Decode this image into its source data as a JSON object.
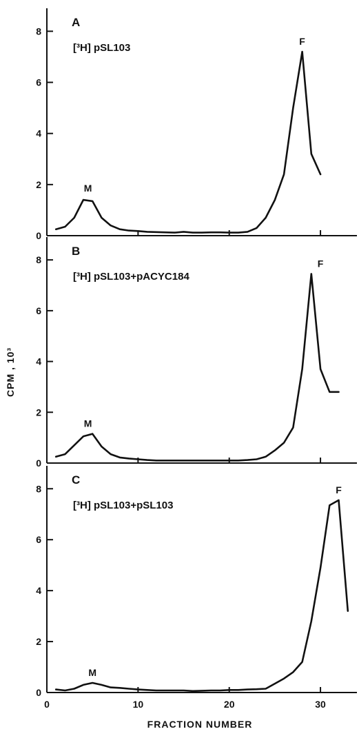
{
  "chart_data": {
    "type": "line",
    "figure_xlabel": "FRACTION NUMBER",
    "figure_ylabel": "CPM , 10³",
    "x_ticks": [
      0,
      10,
      20,
      30
    ],
    "y_ticks": [
      0,
      2,
      4,
      6,
      8
    ],
    "xlim": [
      0,
      34
    ],
    "ylim": [
      0,
      8.9
    ],
    "panels": [
      {
        "letter": "A",
        "label": "[³H] pSL103",
        "peaks": [
          {
            "text": "M",
            "x": 4.5,
            "y": 1.45
          },
          {
            "text": "F",
            "x": 28,
            "y": 7.2
          }
        ],
        "x": [
          1,
          2,
          3,
          4,
          5,
          6,
          7,
          8,
          9,
          10,
          11,
          12,
          13,
          14,
          15,
          16,
          17,
          18,
          19,
          20,
          21,
          22,
          23,
          24,
          25,
          26,
          27,
          28,
          29,
          30
        ],
        "y": [
          0.25,
          0.35,
          0.7,
          1.4,
          1.35,
          0.7,
          0.4,
          0.25,
          0.2,
          0.18,
          0.15,
          0.14,
          0.13,
          0.12,
          0.15,
          0.12,
          0.12,
          0.13,
          0.13,
          0.12,
          0.12,
          0.15,
          0.3,
          0.7,
          1.4,
          2.4,
          5.0,
          7.2,
          3.2,
          2.4
        ]
      },
      {
        "letter": "B",
        "label": "[³H] pSL103+pACYC184",
        "peaks": [
          {
            "text": "M",
            "x": 4.5,
            "y": 1.15
          },
          {
            "text": "F",
            "x": 30,
            "y": 7.45
          }
        ],
        "x": [
          1,
          2,
          3,
          4,
          5,
          6,
          7,
          8,
          9,
          10,
          11,
          12,
          13,
          14,
          15,
          16,
          17,
          18,
          19,
          20,
          21,
          22,
          23,
          24,
          25,
          26,
          27,
          28,
          29,
          30,
          31,
          32
        ],
        "y": [
          0.25,
          0.35,
          0.7,
          1.05,
          1.15,
          0.65,
          0.35,
          0.22,
          0.18,
          0.15,
          0.12,
          0.1,
          0.1,
          0.1,
          0.1,
          0.1,
          0.1,
          0.1,
          0.1,
          0.1,
          0.1,
          0.12,
          0.15,
          0.25,
          0.5,
          0.8,
          1.4,
          3.7,
          7.45,
          3.7,
          2.8,
          2.8
        ]
      },
      {
        "letter": "C",
        "label": "[³H] pSL103+pSL103",
        "peaks": [
          {
            "text": "M",
            "x": 5,
            "y": 0.38
          },
          {
            "text": "F",
            "x": 32,
            "y": 7.55
          }
        ],
        "x": [
          1,
          2,
          3,
          4,
          5,
          6,
          7,
          8,
          9,
          10,
          11,
          12,
          13,
          14,
          15,
          16,
          17,
          18,
          19,
          20,
          21,
          22,
          23,
          24,
          25,
          26,
          27,
          28,
          29,
          30,
          31,
          32,
          33
        ],
        "y": [
          0.12,
          0.08,
          0.15,
          0.3,
          0.38,
          0.3,
          0.2,
          0.18,
          0.15,
          0.12,
          0.1,
          0.08,
          0.08,
          0.08,
          0.08,
          0.06,
          0.07,
          0.08,
          0.08,
          0.1,
          0.1,
          0.12,
          0.13,
          0.15,
          0.35,
          0.55,
          0.8,
          1.2,
          2.8,
          4.9,
          7.35,
          7.55,
          3.2
        ]
      }
    ]
  }
}
